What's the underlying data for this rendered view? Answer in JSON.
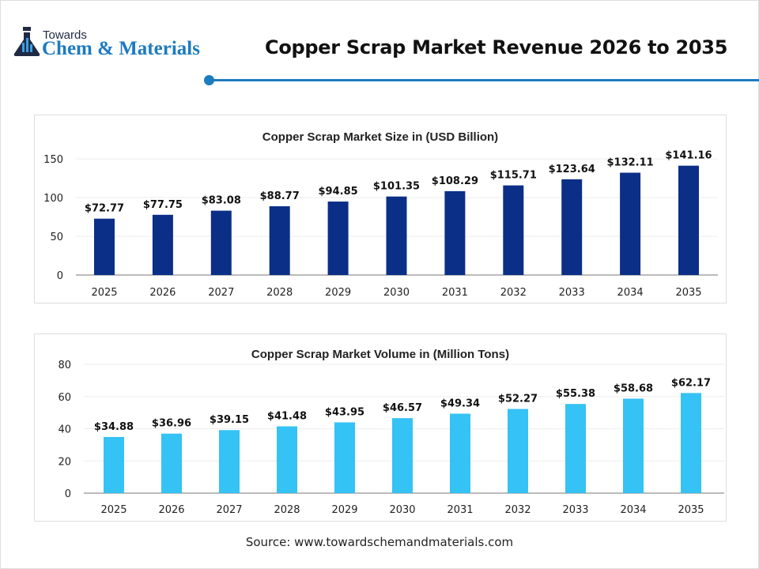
{
  "header": {
    "logo_top": "Towards",
    "logo_brand": "Chem & Materials",
    "title": "Copper Scrap Market Revenue 2026 to 2035"
  },
  "footer": {
    "source": "Source: www.towardschemandmaterials.com"
  },
  "chart_data": [
    {
      "type": "bar",
      "title": "Copper Scrap Market Size in (USD Billion)",
      "categories": [
        "2025",
        "2026",
        "2027",
        "2028",
        "2029",
        "2030",
        "2031",
        "2032",
        "2033",
        "2034",
        "2035"
      ],
      "values": [
        72.77,
        77.75,
        83.08,
        88.77,
        94.85,
        101.35,
        108.29,
        115.71,
        123.64,
        132.11,
        141.16
      ],
      "labels": [
        "$72.77",
        "$77.75",
        "$83.08",
        "$88.77",
        "$94.85",
        "$101.35",
        "$108.29",
        "$115.71",
        "$123.64",
        "$132.11",
        "$141.16"
      ],
      "ylim": [
        0,
        150
      ],
      "yticks": [
        0,
        50,
        100,
        150
      ],
      "grid": true,
      "color": "#0b2f87"
    },
    {
      "type": "bar",
      "title": "Copper Scrap Market Volume in (Million Tons)",
      "categories": [
        "2025",
        "2026",
        "2027",
        "2028",
        "2029",
        "2030",
        "2031",
        "2032",
        "2033",
        "2034",
        "2035"
      ],
      "values": [
        34.88,
        36.96,
        39.15,
        41.48,
        43.95,
        46.57,
        49.34,
        52.27,
        55.38,
        58.68,
        62.17
      ],
      "labels": [
        "$34.88",
        "$36.96",
        "$39.15",
        "$41.48",
        "$43.95",
        "$46.57",
        "$49.34",
        "$52.27",
        "$55.38",
        "$58.68",
        "$62.17"
      ],
      "ylim": [
        0,
        80
      ],
      "yticks": [
        0,
        20,
        40,
        60,
        80
      ],
      "grid": true,
      "color": "#35c2f4"
    }
  ]
}
